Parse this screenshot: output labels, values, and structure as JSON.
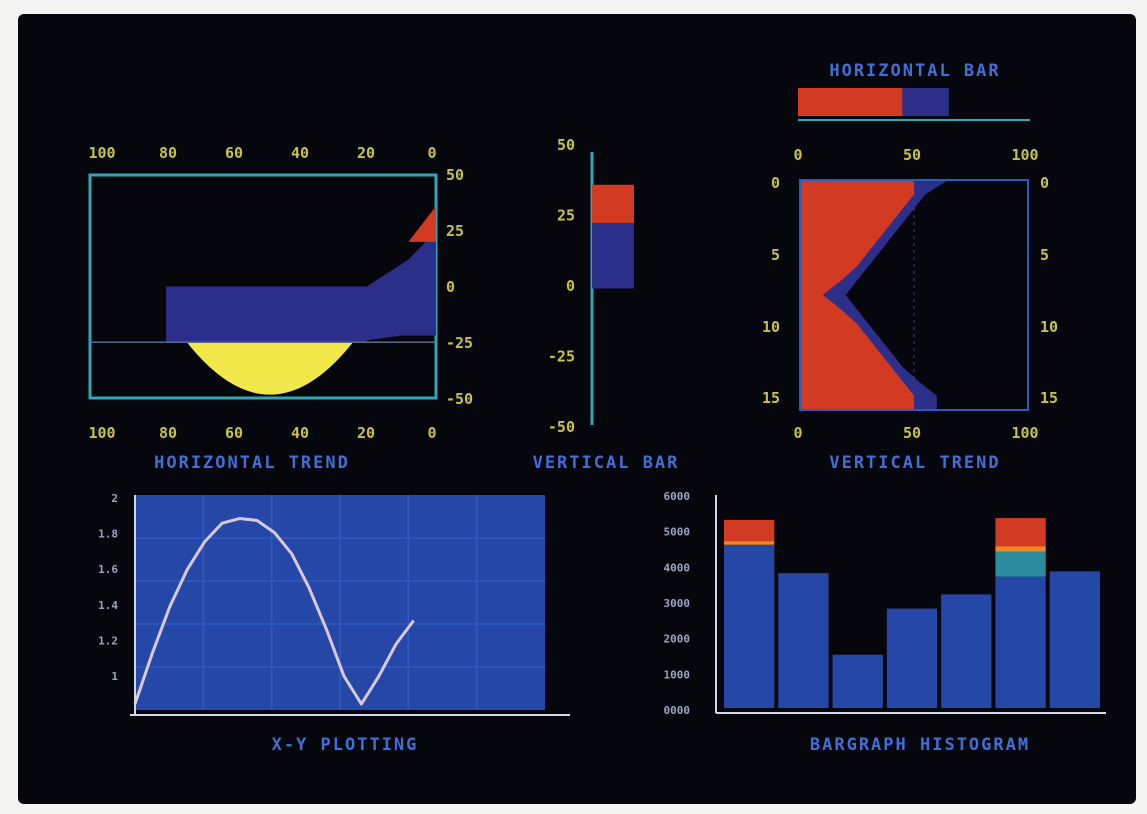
{
  "colors": {
    "background": "#06070c",
    "axis": "#2fa7b5",
    "tick_text": "#c8c24a",
    "caption": "#3f6fd8",
    "navy": "#2c2f8a",
    "red": "#d23a22",
    "yellow": "#f2e84a",
    "plot_blue": "#2548a8",
    "curve": "#d8c8e0",
    "orange": "#f08a20",
    "teal": "#2a8c9c"
  },
  "chart_data": [
    {
      "id": "horizontal-trend",
      "type": "area",
      "title": "HORIZONTAL TREND",
      "x_ticks_top": [
        "100",
        "80",
        "60",
        "40",
        "20",
        "0"
      ],
      "x_ticks_bottom": [
        "100",
        "80",
        "60",
        "40",
        "20",
        "0"
      ],
      "y_ticks": [
        "50",
        "25",
        "0",
        "-25",
        "-50"
      ],
      "xlim": [
        100,
        0
      ],
      "ylim": [
        -50,
        50
      ],
      "series": [
        {
          "fill": "navy",
          "x": [
            100,
            80,
            70,
            60,
            50,
            40,
            30,
            20,
            10,
            0
          ],
          "y": [
            -50,
            -50,
            -50,
            -50,
            -50,
            -50,
            -50,
            -50,
            -50,
            -50
          ]
        }
      ],
      "profile": {
        "x": [
          100,
          90,
          80,
          70,
          60,
          50,
          40,
          30,
          20,
          10,
          5,
          0
        ],
        "y": [
          -50,
          -50,
          -50,
          -50,
          -40,
          -25,
          0,
          0,
          0,
          5,
          15,
          28
        ]
      },
      "navy_band": {
        "x": [
          78,
          20
        ],
        "y_top": 0
      },
      "yellow_band": {
        "x_center": 48,
        "y_range": [
          -25,
          -50
        ]
      },
      "red_peak": {
        "x_range": [
          8,
          0
        ],
        "y_top": 28
      }
    },
    {
      "id": "vertical-bar",
      "type": "bar",
      "title": "VERTICAL BAR",
      "y_ticks": [
        "50",
        "25",
        "0",
        "-25",
        "-50"
      ],
      "ylim": [
        -50,
        50
      ],
      "segments": [
        {
          "fill": "navy",
          "from": 0,
          "to": 24
        },
        {
          "fill": "red",
          "from": 24,
          "to": 38
        }
      ]
    },
    {
      "id": "horizontal-bar",
      "type": "bar",
      "title": "HORIZONTAL BAR",
      "xlim": [
        0,
        100
      ],
      "segments": [
        {
          "fill": "red",
          "from": 0,
          "to": 45
        },
        {
          "fill": "navy",
          "from": 45,
          "to": 65
        }
      ]
    },
    {
      "id": "vertical-trend",
      "type": "area",
      "title": "VERTICAL TREND",
      "x_ticks_top": [
        "0",
        "50",
        "100"
      ],
      "x_ticks_bottom": [
        "0",
        "50",
        "100"
      ],
      "y_ticks_left": [
        "0",
        "5",
        "10",
        "15"
      ],
      "y_ticks_right": [
        "0",
        "5",
        "10",
        "15"
      ],
      "xlim": [
        0,
        100
      ],
      "ylim": [
        0,
        16
      ],
      "navy_profile": {
        "y": [
          0,
          1,
          2,
          3,
          4,
          5,
          6,
          7,
          8,
          9,
          10,
          11,
          12,
          13,
          14,
          15,
          16
        ],
        "x": [
          65,
          55,
          50,
          45,
          40,
          35,
          30,
          25,
          20,
          25,
          30,
          35,
          40,
          45,
          52,
          60,
          60
        ]
      },
      "red_profile": {
        "y": [
          0,
          1,
          2,
          3,
          4,
          5,
          6,
          7,
          8,
          9,
          10,
          11,
          12,
          13,
          14,
          15,
          16
        ],
        "x": [
          50,
          50,
          45,
          40,
          35,
          30,
          25,
          18,
          10,
          18,
          25,
          30,
          35,
          40,
          45,
          50,
          50
        ]
      }
    },
    {
      "id": "xy-plotting",
      "type": "line",
      "title": "X-Y PLOTTING",
      "y_ticks": [
        "2",
        "1.8",
        "1.6",
        "1.4",
        "1.2",
        "1"
      ],
      "xlim": [
        0,
        12
      ],
      "ylim": [
        0,
        2.2
      ],
      "x": [
        0,
        0.5,
        1,
        1.5,
        2,
        2.5,
        3,
        3.5,
        4,
        4.5,
        5,
        5.5,
        6,
        6.5,
        7,
        7.5,
        8
      ],
      "y": [
        0,
        0.55,
        1.05,
        1.45,
        1.75,
        1.95,
        2.0,
        1.98,
        1.85,
        1.62,
        1.25,
        0.8,
        0.3,
        0.0,
        0.3,
        0.65,
        0.9
      ]
    },
    {
      "id": "bargraph-histogram",
      "type": "bar",
      "title": "BARGRAPH HISTOGRAM",
      "y_ticks": [
        "6000",
        "5000",
        "4000",
        "3000",
        "2000",
        "1000",
        "0000"
      ],
      "ylim": [
        0,
        6000
      ],
      "bars": [
        {
          "blue": 4600,
          "teal": 0,
          "orange": 100,
          "red": 600
        },
        {
          "blue": 3800,
          "teal": 0,
          "orange": 0,
          "red": 0
        },
        {
          "blue": 1500,
          "teal": 0,
          "orange": 0,
          "red": 0
        },
        {
          "blue": 2800,
          "teal": 0,
          "orange": 0,
          "red": 0
        },
        {
          "blue": 3200,
          "teal": 0,
          "orange": 0,
          "red": 0
        },
        {
          "blue": 3700,
          "teal": 700,
          "orange": 150,
          "red": 800
        },
        {
          "blue": 3850,
          "teal": 0,
          "orange": 0,
          "red": 0
        }
      ]
    }
  ]
}
